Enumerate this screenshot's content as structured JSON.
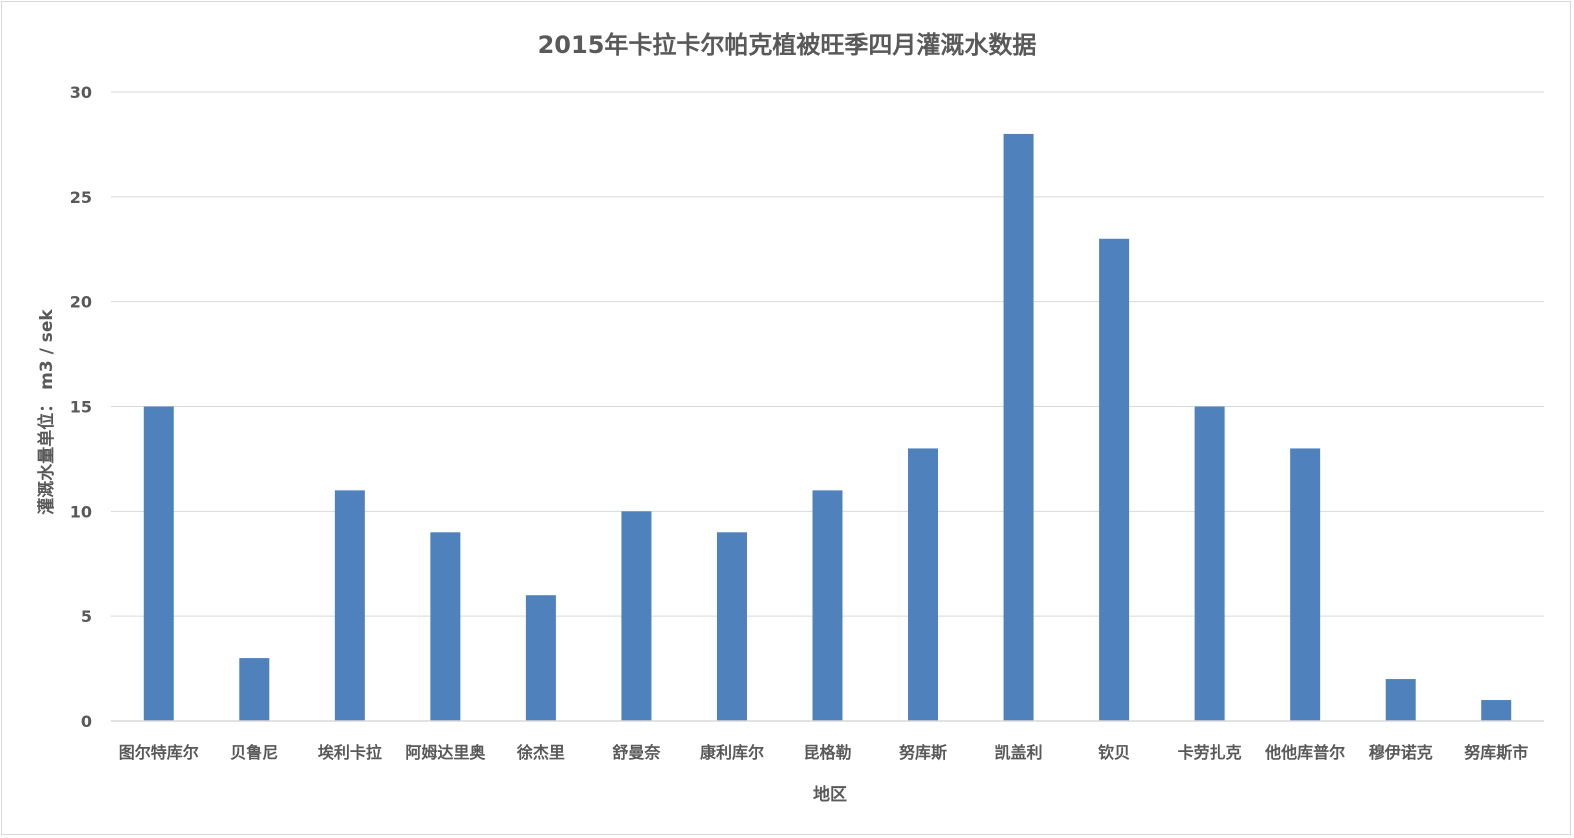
{
  "chart_data": {
    "type": "bar",
    "title": "2015年卡拉卡尔帕克植被旺季四月灌溉水数据",
    "xlabel": "地区",
    "ylabel": "灌溉水量单位： m3 / sek",
    "ylim": [
      0,
      30
    ],
    "yticks": [
      "0",
      "5",
      "10",
      "15",
      "20",
      "25",
      "30"
    ],
    "grid": true,
    "categories": [
      "图尔特库尔",
      "贝鲁尼",
      "埃利卡拉",
      "阿姆达里奥",
      "徐杰里",
      "舒曼奈",
      "康利库尔",
      "昆格勒",
      "努库斯",
      "凯盖利",
      "钦贝",
      "卡劳扎克",
      "他他库普尔",
      "穆伊诺克",
      "努库斯市"
    ],
    "series": [
      {
        "values": [
          15,
          3,
          11,
          9,
          6,
          10,
          9,
          11,
          13,
          28,
          23,
          15,
          13,
          2,
          1
        ]
      }
    ],
    "colors": {
      "bar": "#4f81bd",
      "grid": "#d9d9d9",
      "text": "#595959"
    }
  }
}
